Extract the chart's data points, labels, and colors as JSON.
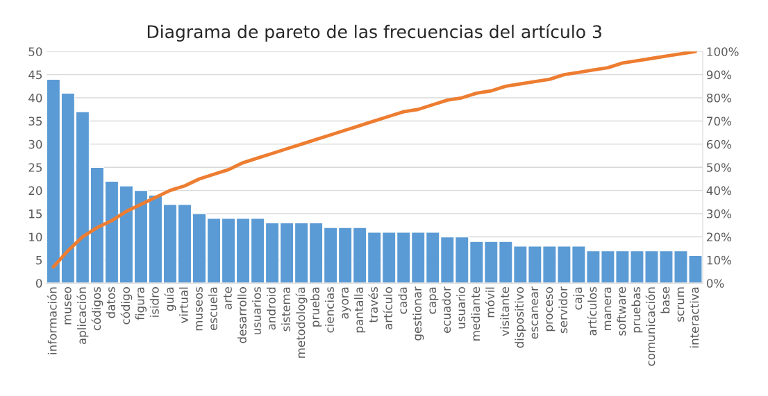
{
  "chart_data": {
    "type": "bar",
    "title": "Diagrama de pareto de las frecuencias del artículo 3",
    "categories": [
      "información",
      "museo",
      "aplicación",
      "códigos",
      "datos",
      "código",
      "figura",
      "isidro",
      "guía",
      "virtual",
      "museos",
      "escuela",
      "arte",
      "desarrollo",
      "usuarios",
      "android",
      "sistema",
      "metodología",
      "prueba",
      "ciencias",
      "ayora",
      "pantalla",
      "través",
      "artículo",
      "cada",
      "gestionar",
      "capa",
      "ecuador",
      "usuario",
      "mediante",
      "móvil",
      "visitante",
      "dispositivo",
      "escanear",
      "proceso",
      "servidor",
      "caja",
      "artículos",
      "manera",
      "software",
      "pruebas",
      "comunicación",
      "base",
      "scrum",
      "interactiva"
    ],
    "series": [
      {
        "color": "#5b9bd5",
        "values": [
          44,
          41,
          37,
          25,
          22,
          21,
          20,
          19,
          17,
          17,
          15,
          14,
          14,
          14,
          14,
          13,
          13,
          13,
          13,
          12,
          12,
          12,
          11,
          11,
          11,
          11,
          11,
          10,
          10,
          9,
          9,
          9,
          8,
          8,
          8,
          8,
          8,
          7,
          7,
          7,
          7,
          7,
          7,
          7,
          6
        ]
      },
      {
        "type": "line",
        "axis": "y2",
        "color": "#ed7d31",
        "values": [
          7,
          14,
          20,
          24,
          27,
          31,
          34,
          37,
          40,
          42,
          45,
          47,
          49,
          52,
          54,
          56,
          58,
          60,
          62,
          64,
          66,
          68,
          70,
          72,
          74,
          75,
          77,
          79,
          80,
          82,
          83,
          85,
          86,
          87,
          88,
          90,
          91,
          92,
          93,
          95,
          96,
          97,
          98,
          99,
          100
        ]
      }
    ],
    "ylim": [
      0,
      50
    ],
    "yticks": [
      0,
      5,
      10,
      15,
      20,
      25,
      30,
      35,
      40,
      45,
      50
    ],
    "y2lim": [
      0,
      100
    ],
    "y2ticks": [
      {
        "value": 0,
        "label": "0%"
      },
      {
        "value": 10,
        "label": "10%"
      },
      {
        "value": 20,
        "label": "20%"
      },
      {
        "value": 30,
        "label": "30%"
      },
      {
        "value": 40,
        "label": "40%"
      },
      {
        "value": 50,
        "label": "50%"
      },
      {
        "value": 60,
        "label": "60%"
      },
      {
        "value": 70,
        "label": "70%"
      },
      {
        "value": 80,
        "label": "80%"
      },
      {
        "value": 90,
        "label": "90%"
      },
      {
        "value": 100,
        "label": "100%"
      }
    ],
    "grid": "y",
    "legend": false
  }
}
